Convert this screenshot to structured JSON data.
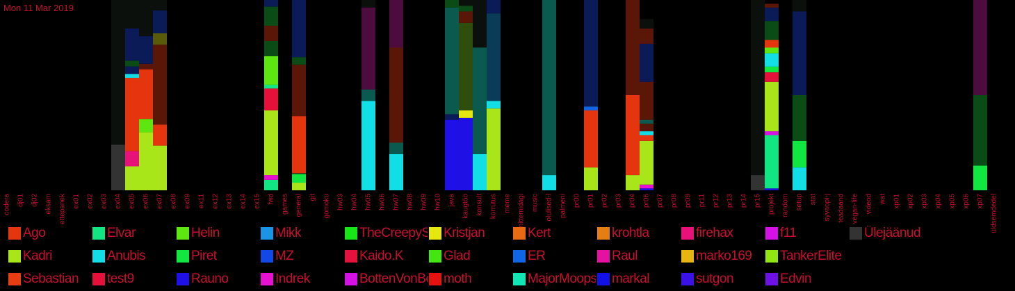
{
  "date_label": "Mon 11 Mar 2019",
  "chart_data": {
    "type": "bar",
    "stacked": true,
    "categories": [
      "codera",
      "dj01",
      "dj02",
      "eksam",
      "ettepanek",
      "ex01",
      "ex02",
      "ex03",
      "ex04",
      "ex05",
      "ex06",
      "ex07",
      "ex08",
      "ex09",
      "ex11",
      "ex12",
      "ex13",
      "ex14",
      "ex15",
      "fwd",
      "games",
      "general",
      "git",
      "gomoku",
      "hw03",
      "hw04",
      "hw05",
      "hw06",
      "hw07",
      "hw08",
      "hw09",
      "hw10",
      "java",
      "kaugtöö",
      "konsult",
      "korrutus",
      "meme",
      "mittemidagi",
      "music",
      "olulised-l",
      "palmeni",
      "pr00",
      "pr01",
      "pr02",
      "pr03",
      "pr04",
      "pr06",
      "pr07",
      "pr08",
      "pr09",
      "pr11",
      "pr12",
      "pr13",
      "pr14",
      "pr15",
      "projekt",
      "random",
      "setup",
      "stat",
      "syvaopi-j",
      "teadaand",
      "vegan-life",
      "videod",
      "wat",
      "xp01",
      "xp02",
      "xp03",
      "xp04",
      "xp05",
      "xp06",
      "xp07",
      "üldsemdedel"
    ],
    "segments": [
      {
        "cat": "ex04",
        "stack": [
          [
            "Ülejäänud",
            0.24
          ],
          [
            "bg0",
            0.76
          ]
        ]
      },
      {
        "cat": "ex05",
        "stack": [
          [
            "Kadri",
            0.126
          ],
          [
            "firehax",
            0.08
          ],
          [
            "Ago",
            0.385
          ],
          [
            "Anubis",
            0.02
          ],
          [
            "c_navy",
            0.04
          ],
          [
            "c_darkgreen",
            0.03
          ],
          [
            "c_navy",
            0.17
          ],
          [
            "bg0",
            0.149
          ]
        ]
      },
      {
        "cat": "ex06",
        "stack": [
          [
            "Kadri",
            0.305
          ],
          [
            "Helin",
            0.07
          ],
          [
            "Ago",
            0.26
          ],
          [
            "c_darkred",
            0.03
          ],
          [
            "c_navy",
            0.145
          ],
          [
            "bg0",
            0.19
          ]
        ]
      },
      {
        "cat": "ex07",
        "stack": [
          [
            "Kadri",
            0.235
          ],
          [
            "Ago",
            0.11
          ],
          [
            "c_darkred",
            0.42
          ],
          [
            "c_olive",
            0.06
          ],
          [
            "c_navy",
            0.12
          ],
          [
            "bg0",
            0.055
          ]
        ]
      },
      {
        "cat": "fwd",
        "stack": [
          [
            "Elvar",
            0.055
          ],
          [
            "Indrek",
            0.025
          ],
          [
            "Kadri",
            0.34
          ],
          [
            "test9",
            0.115
          ],
          [
            "c_mint",
            0.02
          ],
          [
            "Helin",
            0.15
          ],
          [
            "c_darkgreen",
            0.08
          ],
          [
            "c_darkred",
            0.08
          ],
          [
            "c_darkgreen",
            0.1
          ],
          [
            "c_navy",
            0.035
          ]
        ]
      },
      {
        "cat": "general",
        "stack": [
          [
            "Kadri",
            0.04
          ],
          [
            "Piret",
            0.045
          ],
          [
            "c_darkgreen",
            0.005
          ],
          [
            "Ago",
            0.3
          ],
          [
            "c_darkred",
            0.27
          ],
          [
            "c_darkgreen",
            0.04
          ],
          [
            "c_navy",
            0.3
          ]
        ]
      },
      {
        "cat": "hw05",
        "stack": [
          [
            "Anubis",
            0.47
          ],
          [
            "c_teal",
            0.06
          ],
          [
            "c_plum",
            0.43
          ],
          [
            "bg0",
            0.04
          ]
        ]
      },
      {
        "cat": "hw07",
        "stack": [
          [
            "Anubis",
            0.19
          ],
          [
            "c_teal",
            0.06
          ],
          [
            "c_darkred",
            0.5
          ],
          [
            "c_plum",
            0.25
          ]
        ]
      },
      {
        "cat": "java",
        "stack": [
          [
            "Rauno",
            0.37
          ],
          [
            "c_navy",
            0.03
          ],
          [
            "c_teal",
            0.56
          ],
          [
            "c_darkgreen",
            0.04
          ]
        ]
      },
      {
        "cat": "kaugtöö",
        "stack": [
          [
            "Rauno",
            0.38
          ],
          [
            "Kristjan",
            0.04
          ],
          [
            "c_olive2",
            0.46
          ],
          [
            "c_darkred",
            0.06
          ],
          [
            "c_darkgreen",
            0.03
          ],
          [
            "bg0",
            0.03
          ]
        ]
      },
      {
        "cat": "konsult",
        "stack": [
          [
            "Anubis",
            0.19
          ],
          [
            "c_teal",
            0.56
          ],
          [
            "bg0",
            0.25
          ]
        ]
      },
      {
        "cat": "korrutus",
        "stack": [
          [
            "Kadri",
            0.43
          ],
          [
            "Anubis",
            0.04
          ],
          [
            "c_teal2",
            0.46
          ],
          [
            "c_navy",
            0.07
          ]
        ]
      },
      {
        "cat": "olulised-l",
        "stack": [
          [
            "Anubis",
            0.08
          ],
          [
            "c_teal",
            0.92
          ]
        ]
      },
      {
        "cat": "pr01",
        "stack": [
          [
            "Kadri",
            0.12
          ],
          [
            "Ago",
            0.3
          ],
          [
            "ER",
            0.02
          ],
          [
            "c_navy",
            0.56
          ]
        ]
      },
      {
        "cat": "pr04",
        "stack": [
          [
            "Kadri",
            0.08
          ],
          [
            "Ago",
            0.42
          ],
          [
            "c_darkred",
            0.5
          ]
        ]
      },
      {
        "cat": "pr06",
        "stack": [
          [
            "Rauno",
            0.01
          ],
          [
            "Indrek",
            0.02
          ],
          [
            "Kadri",
            0.23
          ],
          [
            "Ago",
            0.03
          ],
          [
            "Anubis",
            0.02
          ],
          [
            "c_darkred",
            0.04
          ],
          [
            "c_teal",
            0.02
          ],
          [
            "c_darkred",
            0.2
          ],
          [
            "c_navy",
            0.2
          ],
          [
            "c_darkred",
            0.08
          ],
          [
            "bg0",
            0.05
          ]
        ]
      },
      {
        "cat": "pr15",
        "stack": [
          [
            "Ülejäänud",
            0.08
          ],
          [
            "bg0",
            0.92
          ]
        ]
      },
      {
        "cat": "projekt",
        "stack": [
          [
            "Rauno",
            0.01
          ],
          [
            "Elvar",
            0.28
          ],
          [
            "f11",
            0.02
          ],
          [
            "Kadri",
            0.26
          ],
          [
            "test9",
            0.05
          ],
          [
            "Piret",
            0.03
          ],
          [
            "Anubis",
            0.07
          ],
          [
            "Helin",
            0.03
          ],
          [
            "Ago",
            0.04
          ],
          [
            "c_darkgreen",
            0.1
          ],
          [
            "c_navy",
            0.07
          ],
          [
            "c_darkred",
            0.02
          ]
        ]
      },
      {
        "cat": "setup",
        "stack": [
          [
            "Anubis",
            0.12
          ],
          [
            "Piret",
            0.14
          ],
          [
            "c_darkgreen",
            0.24
          ],
          [
            "c_navy",
            0.44
          ],
          [
            "bg0",
            0.06
          ]
        ]
      },
      {
        "cat": "xp07",
        "stack": [
          [
            "Piret",
            0.13
          ],
          [
            "c_darkgreen",
            0.37
          ],
          [
            "c_plum",
            0.5
          ]
        ]
      }
    ],
    "legend": [
      [
        "Ago",
        "#e5350f"
      ],
      [
        "Elvar",
        "#12e683"
      ],
      [
        "Helin",
        "#5ee611"
      ],
      [
        "Mikk",
        "#1b94e5"
      ],
      [
        "TheCreepySh",
        "#17e617"
      ],
      [
        "Kristjan",
        "#e6e611"
      ],
      [
        "Kert",
        "#e66b12"
      ],
      [
        "krohtla",
        "#e67d12"
      ],
      [
        "firehax",
        "#e6127a"
      ],
      [
        "f11",
        "#d611e6"
      ],
      [
        "Ülejäänud",
        "#333333"
      ],
      [
        "Kadri",
        "#a8e61a"
      ],
      [
        "Anubis",
        "#12dee6"
      ],
      [
        "Piret",
        "#11e641"
      ],
      [
        "MZ",
        "#1148e6"
      ],
      [
        "Kaido.K",
        "#e6123e"
      ],
      [
        "Glad",
        "#43e611"
      ],
      [
        "ER",
        "#1166e6"
      ],
      [
        "Raul",
        "#e611a3"
      ],
      [
        "marko169",
        "#e6b511"
      ],
      [
        "TankerElite",
        "#8fe611"
      ],
      [
        "Sebastian",
        "#e63d12"
      ],
      [
        "test9",
        "#e6113a"
      ],
      [
        "Rauno",
        "#1f11e6"
      ],
      [
        "Indrek",
        "#e611d1"
      ],
      [
        "BottenVonBot",
        "#d511e6"
      ],
      [
        "moth",
        "#e61111"
      ],
      [
        "MajorMoopsy",
        "#12e6b4"
      ],
      [
        "markal",
        "#1111e6"
      ],
      [
        "sutgon",
        "#3a11e6"
      ],
      [
        "Edvin",
        "#6e11e6"
      ]
    ],
    "extra_colors": {
      "bg0": "#0c100c",
      "c_navy": "#0b1b58",
      "c_darkgreen": "#0b4c16",
      "c_darkred": "#5a1707",
      "c_olive": "#5a5a0b",
      "c_plum": "#4d0c3e",
      "c_teal": "#0b5a50",
      "c_teal2": "#0b3c57",
      "c_olive2": "#2f4d0c",
      "c_mint": "#12e683"
    }
  }
}
